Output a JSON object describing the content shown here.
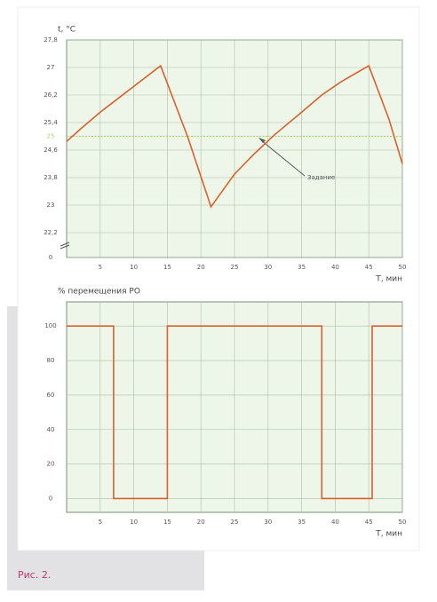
{
  "chart_data": [
    {
      "type": "line",
      "y_label": "t, °C",
      "x_label": "T, мин",
      "xlim": [
        0,
        50
      ],
      "xticks": [
        5,
        10,
        15,
        20,
        25,
        30,
        35,
        40,
        45,
        50
      ],
      "ylim": [
        0,
        27.8
      ],
      "axis_break": [
        0,
        22.2
      ],
      "yticks": [
        0,
        {
          "value": 22.2,
          "label": "22,2"
        },
        23,
        {
          "value": 23.8,
          "label": "23,8"
        },
        {
          "value": 24.6,
          "label": "24,6"
        },
        {
          "value": 25.4,
          "label": "25,4"
        },
        {
          "value": 26.2,
          "label": "26,2"
        },
        27,
        {
          "value": 27.8,
          "label": "27,8"
        }
      ],
      "grid": true,
      "setpoint": {
        "value": 25,
        "label": "25",
        "color": "#a9d36e"
      },
      "annotation": "Задание",
      "series": [
        {
          "color": "#d9622b",
          "x": [
            0,
            2,
            5,
            8,
            11,
            14,
            18,
            21.5,
            25,
            28,
            31,
            35,
            38,
            41,
            45,
            48,
            50
          ],
          "values": [
            24.85,
            25.2,
            25.7,
            26.15,
            26.6,
            27.05,
            25.0,
            22.95,
            23.9,
            24.5,
            25.05,
            25.7,
            26.2,
            26.6,
            27.05,
            25.5,
            24.2
          ]
        }
      ]
    },
    {
      "type": "line",
      "y_label": "% перемещения РО",
      "x_label": "T, мин",
      "xlim": [
        0,
        50
      ],
      "xticks": [
        5,
        10,
        15,
        20,
        25,
        30,
        35,
        40,
        45,
        50
      ],
      "ylim": [
        -8,
        114
      ],
      "yticks": [
        0,
        20,
        40,
        60,
        80,
        100
      ],
      "grid": true,
      "series": [
        {
          "color": "#d9622b",
          "x": [
            0,
            7,
            7,
            15,
            15,
            38,
            38,
            45.5,
            45.5,
            50
          ],
          "values": [
            100,
            100,
            0,
            0,
            100,
            100,
            0,
            0,
            100,
            100
          ]
        }
      ]
    }
  ],
  "caption": "Рис. 2."
}
